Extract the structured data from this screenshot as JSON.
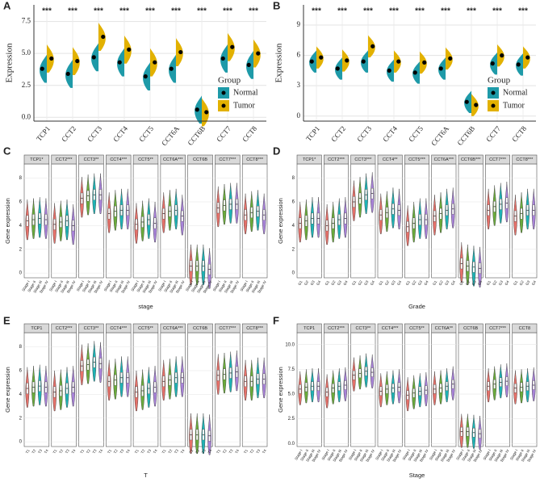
{
  "chart_data": [
    {
      "type": "split-violin",
      "panel": "A",
      "ylabel": "Expression",
      "legend_title": "Group",
      "legend": "bottom-right",
      "categories": [
        "TCP1",
        "CCT2",
        "CCT3",
        "CCT4",
        "CCT5",
        "CCT6A",
        "CCT6B",
        "CCT7",
        "CCT8"
      ],
      "significance": [
        "***",
        "***",
        "***",
        "***",
        "***",
        "***",
        "***",
        "***",
        "***"
      ],
      "series": [
        {
          "name": "Normal",
          "color": "#1e9aa8",
          "values": [
            3.8,
            3.4,
            4.7,
            4.3,
            3.2,
            3.8,
            0.6,
            4.6,
            4.1
          ]
        },
        {
          "name": "Tumor",
          "color": "#e2b100",
          "values": [
            4.6,
            4.4,
            6.3,
            5.3,
            4.3,
            5.1,
            0.4,
            5.5,
            5.0
          ]
        }
      ],
      "ylim": [
        -0.3,
        8.8
      ],
      "yticks": [
        {
          "value": 0,
          "label": "0.0"
        },
        2.5,
        {
          "value": 5,
          "label": "5.0"
        },
        7.5
      ],
      "grid": true
    },
    {
      "type": "split-violin",
      "panel": "B",
      "ylabel": "Expression",
      "legend_title": "Group",
      "legend": "bottom-right",
      "categories": [
        "TCP1",
        "CCT2",
        "CCT3",
        "CCT4",
        "CCT5",
        "CCT6A",
        "CCT6B",
        "CCT7",
        "CCT8"
      ],
      "significance": [
        "***",
        "***",
        "***",
        "***",
        "***",
        "***",
        "***",
        "***",
        "***"
      ],
      "series": [
        {
          "name": "Normal",
          "color": "#1e9aa8",
          "values": [
            5.4,
            4.7,
            5.4,
            4.5,
            4.3,
            4.7,
            1.4,
            5.2,
            5.1
          ]
        },
        {
          "name": "Tumor",
          "color": "#e2b100",
          "values": [
            5.8,
            5.5,
            6.9,
            5.4,
            5.3,
            5.7,
            1.1,
            6.0,
            5.8
          ]
        }
      ],
      "ylim": [
        -0.5,
        11
      ],
      "yticks": [
        0,
        3,
        6,
        9
      ],
      "grid": true
    },
    {
      "type": "violin-facet",
      "panel": "C",
      "xlabel": "stage",
      "ylabel": "Gene expression",
      "groups": [
        "Stage I",
        "Stage II",
        "Stage III",
        "Stage IV"
      ],
      "colors": [
        "#e4716a",
        "#6aab3c",
        "#1fb3b5",
        "#a883d8"
      ],
      "facets": [
        {
          "label": "TCP1*",
          "values": [
            4.4,
            4.5,
            4.6,
            4.5
          ]
        },
        {
          "label": "CCT2***",
          "values": [
            4.1,
            4.3,
            4.4,
            4.0
          ]
        },
        {
          "label": "CCT3**",
          "values": [
            6.3,
            6.5,
            6.6,
            6.6
          ]
        },
        {
          "label": "CCT4***",
          "values": [
            5.0,
            5.2,
            5.3,
            5.3
          ]
        },
        {
          "label": "CCT5**",
          "values": [
            4.1,
            4.3,
            4.5,
            4.2
          ]
        },
        {
          "label": "CCT6A***",
          "values": [
            5.0,
            5.2,
            5.3,
            4.8
          ]
        },
        {
          "label": "CCT6B",
          "values": [
            0.6,
            0.6,
            0.6,
            0.3
          ]
        },
        {
          "label": "CCT7***",
          "values": [
            5.5,
            5.7,
            5.8,
            5.8
          ]
        },
        {
          "label": "CCT8***",
          "values": [
            4.9,
            5.1,
            5.2,
            4.9
          ]
        }
      ],
      "ylim": [
        -0.4,
        9.2
      ],
      "yticks": [
        0,
        2,
        4,
        6,
        8
      ],
      "grid": true
    },
    {
      "type": "violin-facet",
      "panel": "D",
      "xlabel": "Grade",
      "ylabel": "Gene expression",
      "groups": [
        "G1",
        "G2",
        "G3",
        "G4"
      ],
      "colors": [
        "#e4716a",
        "#6aab3c",
        "#1fb3b5",
        "#a883d8"
      ],
      "facets": [
        {
          "label": "TCP1*",
          "values": [
            4.2,
            4.4,
            4.6,
            4.6
          ]
        },
        {
          "label": "CCT2***",
          "values": [
            4.0,
            4.2,
            4.5,
            4.6
          ]
        },
        {
          "label": "CCT3***",
          "values": [
            6.0,
            6.3,
            6.6,
            6.7
          ]
        },
        {
          "label": "CCT4**",
          "values": [
            4.9,
            5.1,
            5.4,
            5.3
          ]
        },
        {
          "label": "CCT5***",
          "values": [
            3.9,
            4.2,
            4.5,
            4.5
          ]
        },
        {
          "label": "CCT6A***",
          "values": [
            4.8,
            5.0,
            5.3,
            5.4
          ]
        },
        {
          "label": "CCT6B***",
          "values": [
            0.8,
            0.6,
            0.5,
            0.4
          ]
        },
        {
          "label": "CCT7***",
          "values": [
            5.3,
            5.6,
            5.8,
            5.9
          ]
        },
        {
          "label": "CCT8***",
          "values": [
            4.8,
            5.0,
            5.3,
            5.3
          ]
        }
      ],
      "ylim": [
        -0.4,
        9.2
      ],
      "yticks": [
        0,
        2,
        4,
        6,
        8
      ],
      "grid": true
    },
    {
      "type": "violin-facet",
      "panel": "E",
      "xlabel": "T",
      "ylabel": "Gene expression",
      "groups": [
        "T1",
        "T2",
        "T3",
        "T4"
      ],
      "colors": [
        "#e4716a",
        "#6aab3c",
        "#1fb3b5",
        "#a883d8"
      ],
      "facets": [
        {
          "label": "TCP1",
          "values": [
            4.5,
            4.6,
            4.7,
            4.6
          ]
        },
        {
          "label": "CCT2***",
          "values": [
            4.2,
            4.3,
            4.5,
            4.6
          ]
        },
        {
          "label": "CCT3**",
          "values": [
            6.4,
            6.5,
            6.7,
            6.6
          ]
        },
        {
          "label": "CCT4***",
          "values": [
            5.1,
            5.2,
            5.4,
            5.4
          ]
        },
        {
          "label": "CCT5**",
          "values": [
            4.2,
            4.3,
            4.5,
            4.6
          ]
        },
        {
          "label": "CCT6A***",
          "values": [
            5.1,
            5.2,
            5.4,
            5.4
          ]
        },
        {
          "label": "CCT6B",
          "values": [
            0.6,
            0.6,
            0.6,
            0.5
          ]
        },
        {
          "label": "CCT7***",
          "values": [
            5.6,
            5.7,
            5.8,
            5.9
          ]
        },
        {
          "label": "CCT8***",
          "values": [
            5.1,
            5.1,
            5.3,
            5.3
          ]
        }
      ],
      "ylim": [
        -0.4,
        9.2
      ],
      "yticks": [
        0,
        2,
        4,
        6,
        8
      ],
      "grid": true
    },
    {
      "type": "violin-facet",
      "panel": "F",
      "xlabel": "Stage",
      "ylabel": "Gene expression",
      "groups": [
        "Stage I",
        "Stage II",
        "Stage III",
        "Stage IV"
      ],
      "colors": [
        "#e4716a",
        "#6aab3c",
        "#1fb3b5",
        "#a883d8"
      ],
      "facets": [
        {
          "label": "TCP1",
          "values": [
            5.5,
            5.7,
            5.8,
            5.8
          ]
        },
        {
          "label": "CCT2***",
          "values": [
            5.2,
            5.6,
            5.8,
            5.9
          ]
        },
        {
          "label": "CCT3**",
          "values": [
            6.9,
            7.1,
            7.3,
            7.2
          ]
        },
        {
          "label": "CCT4***",
          "values": [
            5.3,
            5.5,
            5.6,
            5.7
          ]
        },
        {
          "label": "CCT5**",
          "values": [
            4.9,
            5.1,
            5.3,
            5.4
          ]
        },
        {
          "label": "CCT6A**",
          "values": [
            5.5,
            5.6,
            5.8,
            6.0
          ]
        },
        {
          "label": "CCT6B",
          "values": [
            1.2,
            1.2,
            1.1,
            1.0
          ]
        },
        {
          "label": "CCT7***",
          "values": [
            5.8,
            6.0,
            6.2,
            6.3
          ]
        },
        {
          "label": "CCT8",
          "values": [
            5.6,
            5.7,
            5.8,
            5.9
          ]
        }
      ],
      "ylim": [
        -0.3,
        11.2
      ],
      "yticks": [
        {
          "value": 0,
          "label": "0.0"
        },
        2.5,
        {
          "value": 5,
          "label": "5.0"
        },
        7.5,
        {
          "value": 10,
          "label": "10.0"
        }
      ],
      "grid": true
    }
  ]
}
